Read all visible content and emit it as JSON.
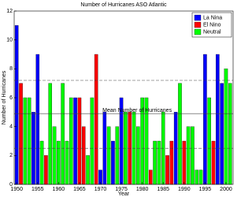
{
  "chart_data": {
    "type": "bar",
    "title": "Number of Hurricanes ASO  Atlantic",
    "x_label": "Year",
    "y_label": "Number of Hurricanes",
    "xlim": [
      1949.4,
      2001.7
    ],
    "xticks": [
      1950,
      1955,
      1960,
      1965,
      1970,
      1975,
      1980,
      1985,
      1990,
      1995,
      2000
    ],
    "ylim": [
      0,
      12
    ],
    "yticks": [
      0,
      2,
      4,
      6,
      8,
      10,
      12
    ],
    "legend": "upper-right",
    "hlines": [
      {
        "value": 2.5
      },
      {
        "value": 4.9,
        "label": "Mean Number of Hurricanes"
      },
      {
        "value": 7.2
      }
    ],
    "series": [
      {
        "name": "La Nina",
        "color": "#0000ff",
        "x": [
          1950,
          1954,
          1955,
          1964,
          1970,
          1971,
          1973,
          1975,
          1988,
          1995,
          1998,
          1999
        ],
        "values": [
          11,
          5,
          9,
          6,
          1,
          5,
          3,
          6,
          5,
          9,
          9,
          7
        ]
      },
      {
        "name": "El Nino",
        "color": "#ff0000",
        "x": [
          1951,
          1957,
          1965,
          1966,
          1969,
          1977,
          1982,
          1986,
          1987,
          1990,
          1997
        ],
        "values": [
          7,
          2,
          6,
          4,
          9,
          5,
          1,
          2,
          3,
          3,
          3
        ]
      },
      {
        "name": "Neutral",
        "color": "#00ff00",
        "x": [
          1952,
          1953,
          1956,
          1958,
          1959,
          1960,
          1961,
          1962,
          1963,
          1967,
          1968,
          1972,
          1974,
          1976,
          1978,
          1979,
          1980,
          1981,
          1983,
          1984,
          1985,
          1989,
          1991,
          1992,
          1993,
          1994,
          1996,
          2000,
          2001
        ],
        "values": [
          6,
          6,
          3,
          7,
          4,
          3,
          7,
          3,
          6,
          2,
          6,
          4,
          4,
          5,
          5,
          4,
          6,
          6,
          3,
          3,
          5,
          7,
          4,
          4,
          1,
          1,
          6,
          8,
          7
        ]
      }
    ]
  }
}
